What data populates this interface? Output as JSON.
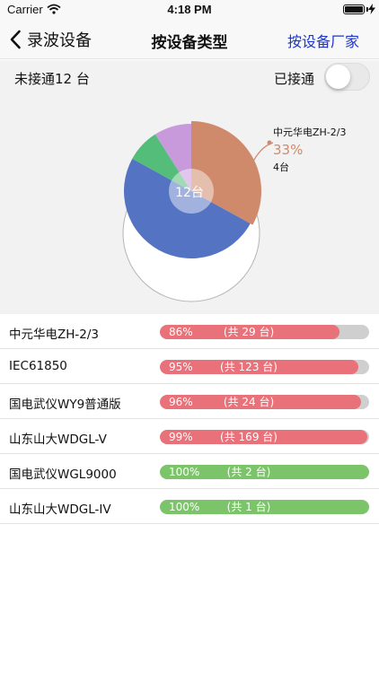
{
  "status_bar": {
    "carrier": "Carrier",
    "time": "4:18 PM"
  },
  "nav": {
    "back_label": "录波设备",
    "title": "按设备类型",
    "right_button": "按设备厂家"
  },
  "summary": {
    "unconnected_text": "未接通12 台",
    "connected_label": "已接通",
    "connected_toggle_on": false
  },
  "chart_data": {
    "type": "pie",
    "center_label": "12台",
    "slices": [
      {
        "value": 33,
        "color": "#cf8a6c"
      },
      {
        "value": 50,
        "color": "#5474c3"
      },
      {
        "value": 8,
        "color": "#55bd7a"
      },
      {
        "value": 9,
        "color": "#c89adc"
      }
    ],
    "callout": {
      "name": "中元华电ZH-2/3",
      "percent": "33%",
      "count": "4台",
      "color": "#cf8a6c"
    }
  },
  "devices": [
    {
      "name": "中元华电ZH-2/3",
      "percent_label": "86%",
      "count_label": "(共 29 台)",
      "fraction": 0.86,
      "color": "#e8717a"
    },
    {
      "name": "IEC61850",
      "percent_label": "95%",
      "count_label": "(共 123 台)",
      "fraction": 0.95,
      "color": "#e8717a"
    },
    {
      "name": "国电武仪WY9普通版",
      "percent_label": "96%",
      "count_label": "(共 24 台)",
      "fraction": 0.96,
      "color": "#e8717a"
    },
    {
      "name": "山东山大WDGL-V",
      "percent_label": "99%",
      "count_label": "(共 169 台)",
      "fraction": 0.99,
      "color": "#e8717a"
    },
    {
      "name": "国电武仪WGL9000",
      "percent_label": "100%",
      "count_label": "(共 2 台)",
      "fraction": 1.0,
      "color": "#7cc46a"
    },
    {
      "name": "山东山大WDGL-IV",
      "percent_label": "100%",
      "count_label": "(共 1 台)",
      "fraction": 1.0,
      "color": "#7cc46a"
    }
  ]
}
